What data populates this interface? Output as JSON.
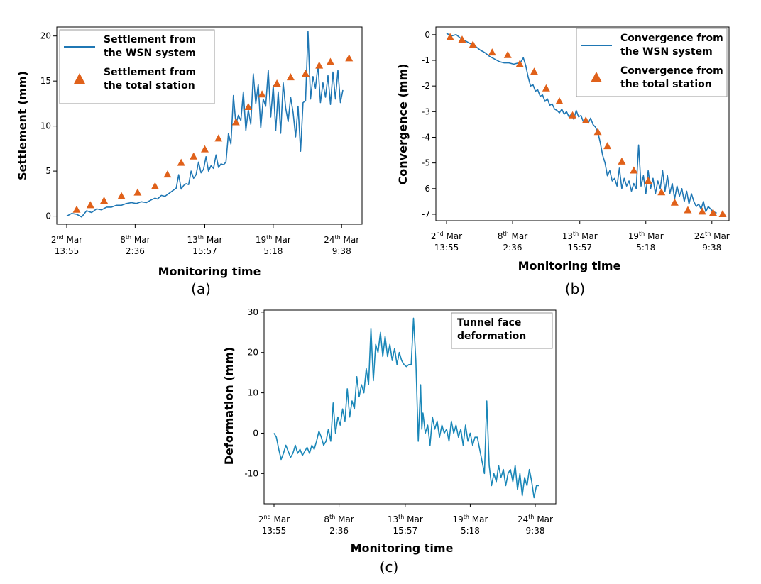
{
  "colors": {
    "wsn_line": "#1f77b4",
    "station_marker": "#e0611a",
    "tunnel_line": "#1a87b8"
  },
  "chart_data": [
    {
      "id": "a",
      "type": "line",
      "panel_label": "(a)",
      "xlabel": "Monitoring time",
      "ylabel": "Settlement (mm)",
      "xlim": [
        0,
        23
      ],
      "ylim": [
        -0.9,
        21
      ],
      "yticks": [
        0,
        5,
        10,
        15,
        20
      ],
      "xticks": [
        {
          "x": 0,
          "day": "2",
          "suffix": "nd",
          "month": "Mar",
          "time": "13:55"
        },
        {
          "x": 5.5,
          "day": "8",
          "suffix": "th",
          "month": "Mar",
          "time": "2:36"
        },
        {
          "x": 11.1,
          "day": "13",
          "suffix": "th",
          "month": "Mar",
          "time": "15:57"
        },
        {
          "x": 16.6,
          "day": "19",
          "suffix": "th",
          "month": "Mar",
          "time": "5:18"
        },
        {
          "x": 22.1,
          "day": "24",
          "suffix": "th",
          "month": "Mar",
          "time": "9:38"
        }
      ],
      "legend_location": "top-left",
      "series": [
        {
          "name": "Settlement from the WSN system",
          "legend_lines": [
            "Settlement from",
            "the WSN system"
          ],
          "kind": "line",
          "x": [
            0,
            0.4,
            0.8,
            1.2,
            1.6,
            2.0,
            2.4,
            2.8,
            3.2,
            3.6,
            4.0,
            4.4,
            4.8,
            5.2,
            5.6,
            6.0,
            6.4,
            6.8,
            7.1,
            7.3,
            7.6,
            7.9,
            8.2,
            8.5,
            8.8,
            9.0,
            9.2,
            9.4,
            9.6,
            9.8,
            10.0,
            10.2,
            10.4,
            10.6,
            10.8,
            11.0,
            11.2,
            11.4,
            11.6,
            11.8,
            12.0,
            12.2,
            12.4,
            12.6,
            12.8,
            13.0,
            13.2,
            13.4,
            13.6,
            13.8,
            14.0,
            14.2,
            14.4,
            14.6,
            14.8,
            15.0,
            15.2,
            15.4,
            15.6,
            15.8,
            16.0,
            16.2,
            16.4,
            16.6,
            16.8,
            17.0,
            17.2,
            17.4,
            17.6,
            17.8,
            18.0,
            18.2,
            18.4,
            18.6,
            18.8,
            19.0,
            19.2,
            19.4,
            19.6,
            19.8,
            20.0,
            20.2,
            20.4,
            20.6,
            20.8,
            21.0,
            21.2,
            21.4,
            21.6,
            21.8,
            22.0,
            22.2
          ],
          "y": [
            0.0,
            0.3,
            0.2,
            -0.1,
            0.6,
            0.4,
            0.8,
            0.7,
            1.0,
            1.0,
            1.2,
            1.2,
            1.4,
            1.5,
            1.4,
            1.6,
            1.5,
            1.8,
            2.0,
            1.9,
            2.3,
            2.2,
            2.5,
            2.8,
            3.1,
            4.6,
            3.0,
            3.4,
            3.6,
            3.5,
            5.0,
            4.2,
            4.6,
            6.0,
            4.8,
            5.2,
            6.6,
            5.0,
            5.6,
            5.3,
            6.8,
            5.4,
            5.8,
            5.7,
            6.0,
            9.2,
            8.0,
            13.4,
            10.2,
            11.2,
            10.6,
            13.8,
            9.5,
            11.8,
            10.2,
            15.8,
            12.5,
            14.6,
            9.8,
            13.0,
            12.2,
            16.2,
            11.0,
            14.5,
            9.5,
            13.8,
            9.2,
            14.8,
            12.0,
            10.5,
            13.2,
            11.5,
            8.8,
            12.2,
            7.2,
            12.6,
            12.8,
            20.5,
            13.0,
            15.5,
            14.2,
            16.8,
            12.6,
            14.8,
            13.2,
            15.6,
            12.4,
            16.0,
            13.0,
            16.2,
            12.6,
            14.0
          ],
          "color": "#1f77b4"
        },
        {
          "name": "Settlement from the total station",
          "legend_lines": [
            "Settlement from",
            "the total station"
          ],
          "kind": "scatter",
          "marker": "triangle",
          "x": [
            0.8,
            1.9,
            3.0,
            4.4,
            5.7,
            7.1,
            8.1,
            9.2,
            10.2,
            11.1,
            12.2,
            13.6,
            14.6,
            15.7,
            16.9,
            18.0,
            19.2,
            20.3,
            21.2,
            22.7
          ],
          "y": [
            0.7,
            1.2,
            1.7,
            2.2,
            2.6,
            3.3,
            4.6,
            5.9,
            6.6,
            7.4,
            8.6,
            10.4,
            12.1,
            13.5,
            14.7,
            15.4,
            15.8,
            16.7,
            17.1,
            17.5
          ],
          "color": "#e0611a"
        }
      ]
    },
    {
      "id": "b",
      "type": "line",
      "panel_label": "(b)",
      "xlabel": "Monitoring time",
      "ylabel": "Convergence (mm)",
      "xlim": [
        0,
        23
      ],
      "ylim": [
        -7.25,
        0.3
      ],
      "yticks": [
        0,
        -1,
        -2,
        -3,
        -4,
        -5,
        -6,
        -7
      ],
      "xticks": [
        {
          "x": 0,
          "day": "2",
          "suffix": "nd",
          "month": "Mar",
          "time": "13:55"
        },
        {
          "x": 5.5,
          "day": "8",
          "suffix": "th",
          "month": "Mar",
          "time": "2:36"
        },
        {
          "x": 11.1,
          "day": "13",
          "suffix": "th",
          "month": "Mar",
          "time": "15:57"
        },
        {
          "x": 16.6,
          "day": "19",
          "suffix": "th",
          "month": "Mar",
          "time": "5:18"
        },
        {
          "x": 22.1,
          "day": "24",
          "suffix": "th",
          "month": "Mar",
          "time": "9:38"
        }
      ],
      "legend_location": "top-right",
      "series": [
        {
          "name": "Convergence from the WSN system",
          "legend_lines": [
            "Convergence from",
            "the WSN system"
          ],
          "kind": "line",
          "x": [
            0,
            0.4,
            0.8,
            1.2,
            1.6,
            2.0,
            2.4,
            2.8,
            3.2,
            3.6,
            4.0,
            4.4,
            4.8,
            5.2,
            5.6,
            6.0,
            6.2,
            6.4,
            6.6,
            6.8,
            7.0,
            7.2,
            7.4,
            7.6,
            7.8,
            8.0,
            8.2,
            8.4,
            8.6,
            8.8,
            9.0,
            9.2,
            9.4,
            9.6,
            9.8,
            10.0,
            10.2,
            10.4,
            10.6,
            10.8,
            11.0,
            11.2,
            11.4,
            11.6,
            11.8,
            12.0,
            12.2,
            12.4,
            12.6,
            12.8,
            13.0,
            13.2,
            13.4,
            13.6,
            13.8,
            14.0,
            14.2,
            14.4,
            14.6,
            14.8,
            15.0,
            15.2,
            15.4,
            15.6,
            15.8,
            16.0,
            16.2,
            16.4,
            16.6,
            16.8,
            17.0,
            17.2,
            17.4,
            17.6,
            17.8,
            18.0,
            18.2,
            18.4,
            18.6,
            18.8,
            19.0,
            19.2,
            19.4,
            19.6,
            19.8,
            20.0,
            20.2,
            20.4,
            20.6,
            20.8,
            21.0,
            21.2,
            21.4,
            21.6,
            21.8,
            22.0,
            22.2,
            22.5
          ],
          "y": [
            0.05,
            -0.05,
            0.0,
            -0.15,
            -0.25,
            -0.35,
            -0.45,
            -0.6,
            -0.7,
            -0.85,
            -0.95,
            -1.05,
            -1.1,
            -1.1,
            -1.15,
            -1.1,
            -1.05,
            -0.9,
            -1.2,
            -1.65,
            -2.0,
            -1.95,
            -2.2,
            -2.15,
            -2.4,
            -2.35,
            -2.6,
            -2.5,
            -2.75,
            -2.7,
            -2.9,
            -2.95,
            -3.05,
            -2.9,
            -3.1,
            -3.0,
            -3.2,
            -3.1,
            -3.3,
            -2.95,
            -3.2,
            -3.15,
            -3.4,
            -3.3,
            -3.45,
            -3.25,
            -3.5,
            -3.6,
            -3.8,
            -4.2,
            -4.7,
            -5.0,
            -5.5,
            -5.3,
            -5.7,
            -5.6,
            -5.9,
            -5.2,
            -6.0,
            -5.6,
            -5.9,
            -5.7,
            -6.1,
            -5.8,
            -6.0,
            -4.3,
            -5.9,
            -5.5,
            -6.2,
            -5.3,
            -6.0,
            -5.6,
            -6.2,
            -5.7,
            -6.0,
            -5.3,
            -6.1,
            -5.5,
            -6.2,
            -5.8,
            -6.4,
            -5.9,
            -6.3,
            -6.0,
            -6.5,
            -6.1,
            -6.6,
            -6.2,
            -6.5,
            -6.7,
            -6.6,
            -6.8,
            -6.5,
            -6.9,
            -6.7,
            -6.8,
            -6.9,
            -6.95
          ],
          "color": "#1f77b4"
        },
        {
          "name": "Convergence from the total station",
          "legend_lines": [
            "Convergence from",
            "the total station"
          ],
          "kind": "scatter",
          "marker": "triangle",
          "x": [
            0.3,
            1.3,
            2.2,
            3.8,
            5.1,
            6.1,
            7.3,
            8.3,
            9.4,
            10.5,
            11.6,
            12.6,
            13.4,
            14.6,
            15.6,
            16.8,
            17.9,
            19.0,
            20.1,
            21.3,
            22.2,
            23.0
          ],
          "y": [
            -0.1,
            -0.2,
            -0.4,
            -0.7,
            -0.8,
            -1.15,
            -1.45,
            -2.1,
            -2.6,
            -3.15,
            -3.35,
            -3.8,
            -4.35,
            -4.95,
            -5.3,
            -5.7,
            -6.15,
            -6.55,
            -6.85,
            -6.9,
            -6.95,
            -7.0
          ],
          "color": "#e0611a"
        }
      ]
    },
    {
      "id": "c",
      "type": "line",
      "panel_label": "(c)",
      "xlabel": "Monitoring time",
      "ylabel": "Deformation (mm)",
      "xlim": [
        0,
        23
      ],
      "ylim": [
        -17.5,
        30.5
      ],
      "yticks": [
        30,
        20,
        10,
        0,
        -10
      ],
      "xticks": [
        {
          "x": 0,
          "day": "2",
          "suffix": "nd",
          "month": "Mar",
          "time": "13:55"
        },
        {
          "x": 5.5,
          "day": "8",
          "suffix": "th",
          "month": "Mar",
          "time": "2:36"
        },
        {
          "x": 11.1,
          "day": "13",
          "suffix": "th",
          "month": "Mar",
          "time": "15:57"
        },
        {
          "x": 16.6,
          "day": "19",
          "suffix": "th",
          "month": "Mar",
          "time": "5:18"
        },
        {
          "x": 22.1,
          "day": "24",
          "suffix": "th",
          "month": "Mar",
          "time": "9:38"
        }
      ],
      "legend_location": "top-right",
      "series": [
        {
          "name": "Tunnel face deformation",
          "legend_lines": [
            "Tunnel face",
            "deformation"
          ],
          "kind": "line",
          "x": [
            0,
            0.2,
            0.4,
            0.6,
            0.8,
            1.0,
            1.2,
            1.4,
            1.6,
            1.8,
            2.0,
            2.2,
            2.4,
            2.6,
            2.8,
            3.0,
            3.2,
            3.4,
            3.6,
            3.8,
            4.0,
            4.2,
            4.4,
            4.6,
            4.8,
            5.0,
            5.2,
            5.4,
            5.6,
            5.8,
            6.0,
            6.2,
            6.4,
            6.6,
            6.8,
            7.0,
            7.2,
            7.4,
            7.6,
            7.8,
            8.0,
            8.2,
            8.4,
            8.6,
            8.8,
            9.0,
            9.2,
            9.4,
            9.6,
            9.8,
            10.0,
            10.2,
            10.4,
            10.6,
            10.8,
            11.0,
            11.2,
            11.4,
            11.6,
            11.8,
            12.0,
            12.2,
            12.4,
            12.5,
            12.6,
            12.8,
            13.0,
            13.2,
            13.4,
            13.6,
            13.8,
            14.0,
            14.2,
            14.4,
            14.6,
            14.8,
            15.0,
            15.2,
            15.4,
            15.6,
            15.8,
            16.0,
            16.2,
            16.4,
            16.6,
            16.8,
            17.0,
            17.2,
            17.4,
            17.6,
            17.8,
            18.0,
            18.2,
            18.4,
            18.6,
            18.8,
            19.0,
            19.2,
            19.4,
            19.6,
            19.8,
            20.0,
            20.2,
            20.4,
            20.6,
            20.8,
            21.0,
            21.2,
            21.4,
            21.6,
            21.8,
            22.0,
            22.2,
            22.4
          ],
          "y": [
            0,
            -1,
            -4,
            -6.5,
            -5,
            -3,
            -4.5,
            -6,
            -5,
            -3,
            -5,
            -4,
            -5.5,
            -4.5,
            -3.5,
            -5,
            -3,
            -4,
            -2,
            0.5,
            -1,
            -3,
            -2,
            1,
            -2,
            7.5,
            0,
            4,
            2,
            6,
            3,
            11,
            4,
            8,
            6,
            14,
            9,
            12,
            10,
            16,
            12,
            26,
            13,
            22,
            20,
            25,
            19,
            24,
            19,
            22,
            18,
            21,
            17,
            20,
            18,
            17,
            16.5,
            17,
            17,
            28.5,
            18,
            -2,
            12,
            1,
            5,
            0,
            2,
            -3,
            4,
            1,
            3,
            -1,
            2,
            0,
            1,
            -2,
            3,
            0,
            2,
            -1,
            1,
            -3,
            2,
            -2,
            0,
            -3,
            -1,
            -1,
            -4,
            -7,
            -10,
            8,
            -8,
            -13,
            -10,
            -12,
            -8,
            -11,
            -9,
            -13,
            -10,
            -9,
            -12,
            -8,
            -14,
            -10,
            -15.5,
            -11,
            -13,
            -9,
            -12,
            -16,
            -13,
            -13
          ],
          "color": "#1a87b8"
        }
      ]
    }
  ]
}
